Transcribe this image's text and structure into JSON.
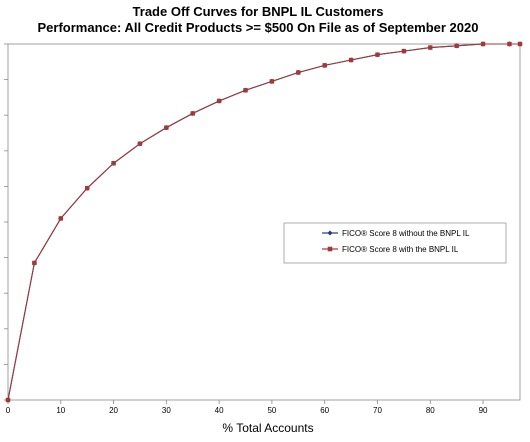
{
  "chart_data": {
    "type": "line",
    "title": "Trade Off Curves for BNPL IL Customers",
    "subtitle": "Performance: All Credit Products >= $500 On File as of September 2020",
    "xlabel": "% Total Accounts",
    "ylabel": "",
    "xlim": [
      0,
      97
    ],
    "ylim": [
      0,
      100
    ],
    "x_ticks": [
      0,
      10,
      20,
      30,
      40,
      50,
      60,
      70,
      80,
      90
    ],
    "grid": false,
    "legend_position": "center-right",
    "series": [
      {
        "name": "FICO® Score 8 without the BNPL IL",
        "color": "#1f3d7a",
        "marker": "diamond",
        "x": [
          0,
          5,
          10,
          15,
          20,
          25,
          30,
          35,
          40,
          45,
          50,
          55,
          60,
          65,
          70,
          75,
          80,
          85,
          90,
          95,
          97
        ],
        "y": [
          0,
          38.5,
          51,
          59.5,
          66.5,
          72,
          76.5,
          80.5,
          84,
          87,
          89.5,
          92,
          94,
          95.5,
          97,
          98,
          99,
          99.5,
          100,
          100,
          100
        ]
      },
      {
        "name": "FICO® Score 8 with the BNPL IL",
        "color": "#9e3a3a",
        "marker": "square",
        "x": [
          0,
          5,
          10,
          15,
          20,
          25,
          30,
          35,
          40,
          45,
          50,
          55,
          60,
          65,
          70,
          75,
          80,
          85,
          90,
          95,
          97
        ],
        "y": [
          0,
          38.5,
          51,
          59.5,
          66.5,
          72,
          76.5,
          80.5,
          84,
          87,
          89.5,
          92,
          94,
          95.5,
          97,
          98,
          99,
          99.5,
          100,
          100,
          100
        ]
      }
    ]
  }
}
